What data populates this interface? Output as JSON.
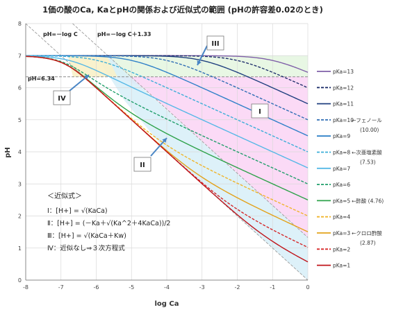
{
  "chart_data": {
    "type": "line",
    "title": "1価の酸のCa, KaとpHの関係および近似式の範囲 (pHの許容差0.02のとき)",
    "xlabel": "log Ca",
    "ylabel": "pH",
    "xlim": [
      -8,
      0
    ],
    "ylim": [
      0,
      8
    ],
    "xticks": [
      "-8",
      "-7",
      "-6",
      "-5",
      "-4",
      "-3",
      "-2",
      "-1",
      "0"
    ],
    "yticks": [
      "0",
      "1",
      "2",
      "3",
      "4",
      "5",
      "6",
      "7",
      "8"
    ],
    "grid": true,
    "legend_position": "right",
    "reference_lines": {
      "ph_634_label": "pH=6.34",
      "line_a_label": "pH=－log C",
      "line_b_label": "pH=－log C＋1.33"
    },
    "region_labels": [
      "I",
      "II",
      "III",
      "IV"
    ],
    "series": [
      {
        "name": "pKa=13",
        "pKa": 13,
        "color": "#7f5fa8",
        "dash": false
      },
      {
        "name": "pKa=12",
        "pKa": 12,
        "color": "#1f2f6b",
        "dash": true
      },
      {
        "name": "pKa=11",
        "pKa": 11,
        "color": "#1f3f7f",
        "dash": false
      },
      {
        "name": "pKa=10",
        "pKa": 10,
        "color": "#2e6db4",
        "dash": true
      },
      {
        "name": "pKa=9",
        "pKa": 9,
        "color": "#2f80c8",
        "dash": false
      },
      {
        "name": "pKa=8",
        "pKa": 8,
        "color": "#3aaed8",
        "dash": true
      },
      {
        "name": "pKa=7",
        "pKa": 7,
        "color": "#55b8e6",
        "dash": false
      },
      {
        "name": "pKa=6",
        "pKa": 6,
        "color": "#1f9e6a",
        "dash": true
      },
      {
        "name": "pKa=5",
        "pKa": 5,
        "color": "#2ea24a",
        "dash": false
      },
      {
        "name": "pKa=4",
        "pKa": 4,
        "color": "#f0b429",
        "dash": true
      },
      {
        "name": "pKa=3",
        "pKa": 3,
        "color": "#e3a21a",
        "dash": false
      },
      {
        "name": "pKa=2",
        "pKa": 2,
        "color": "#d62728",
        "dash": true
      },
      {
        "name": "pKa=1",
        "pKa": 1,
        "color": "#c0141a",
        "dash": false
      }
    ],
    "legend_notes": [
      {
        "after": "pKa=10",
        "text": "←フェノール",
        "sub": "(10.00)"
      },
      {
        "after": "pKa=8",
        "text": "←次亜塩素酸",
        "sub": "(7.53)"
      },
      {
        "after": "pKa=5",
        "text": "←酢酸 (4.76)",
        "sub": ""
      },
      {
        "after": "pKa=3",
        "text": "←クロロ酢酸",
        "sub": "(2.87)"
      }
    ],
    "approx_box": {
      "title": "＜近似式＞",
      "lines": [
        "Ⅰ：[H+] = √(KaCa)",
        "Ⅱ：[H+] = (－Ka＋√(Ka^2＋4KaCa))/2",
        "Ⅲ：[H+] = √(KaCa＋Kw)",
        "Ⅳ：近似なし⇒３次方程式"
      ]
    }
  }
}
